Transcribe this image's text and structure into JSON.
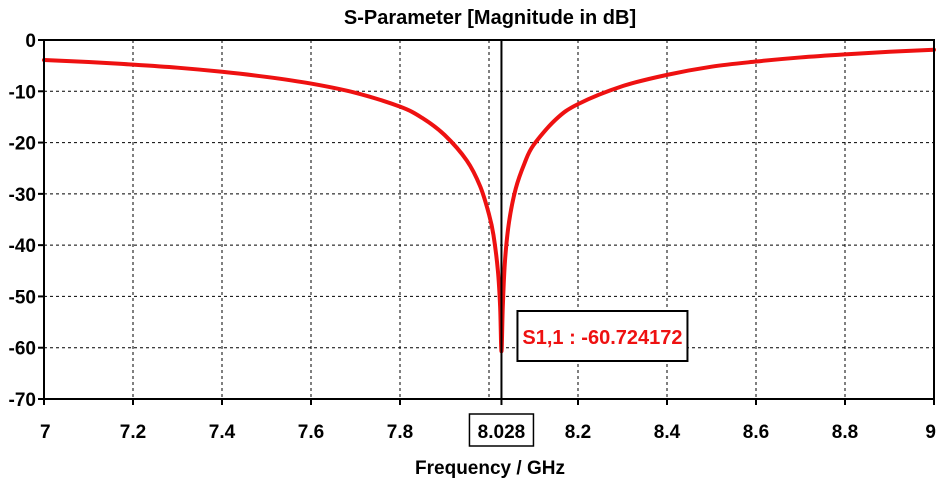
{
  "chart_data": {
    "type": "line",
    "title": "S-Parameter [Magnitude in dB]",
    "xlabel": "Frequency / GHz",
    "ylabel": "",
    "xlim": [
      7,
      9
    ],
    "ylim": [
      -70,
      0
    ],
    "grid": true,
    "x_ticks": [
      "7",
      "7.2",
      "7.4",
      "7.6",
      "7.8",
      "8.028",
      "8.2",
      "8.4",
      "8.6",
      "8.8",
      "9"
    ],
    "x_tick_values": [
      7,
      7.2,
      7.4,
      7.6,
      7.8,
      8.028,
      8.2,
      8.4,
      8.6,
      8.8,
      9
    ],
    "y_ticks": [
      "0",
      "-10",
      "-20",
      "-30",
      "-40",
      "-50",
      "-60",
      "-70"
    ],
    "y_tick_values": [
      0,
      -10,
      -20,
      -30,
      -40,
      -50,
      -60,
      -70
    ],
    "grid_x": [
      7.2,
      7.4,
      7.6,
      7.8,
      8.0,
      8.2,
      8.4,
      8.6,
      8.8
    ],
    "series": [
      {
        "name": "S1,1",
        "color": "#ee1111",
        "x": [
          7.0,
          7.1,
          7.2,
          7.3,
          7.4,
          7.5,
          7.6,
          7.7,
          7.8,
          7.85,
          7.9,
          7.95,
          7.98,
          8.0,
          8.01,
          8.02,
          8.025,
          8.028,
          8.031,
          8.036,
          8.045,
          8.06,
          8.08,
          8.1,
          8.15,
          8.2,
          8.3,
          8.4,
          8.5,
          8.6,
          8.7,
          8.8,
          8.9,
          9.0
        ],
        "values": [
          -3.9,
          -4.3,
          -4.8,
          -5.4,
          -6.2,
          -7.2,
          -8.5,
          -10.3,
          -13.0,
          -15.2,
          -18.5,
          -23.5,
          -28.5,
          -34.0,
          -38.0,
          -45.0,
          -52.0,
          -60.7,
          -52.0,
          -43.0,
          -35.5,
          -29.0,
          -24.0,
          -20.5,
          -15.5,
          -12.5,
          -9.0,
          -6.8,
          -5.2,
          -4.2,
          -3.4,
          -2.8,
          -2.3,
          -1.9
        ]
      }
    ],
    "marker": {
      "x": 8.028,
      "y": -60.724172,
      "label": "S1,1 : -60.724172"
    },
    "colors": {
      "curve": "#ee1111",
      "marker_line": "#000000",
      "grid": "#000000",
      "background": "#ffffff"
    }
  }
}
